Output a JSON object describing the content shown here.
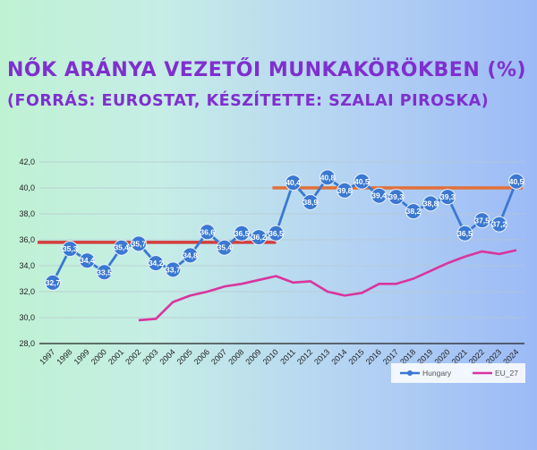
{
  "title": "Nők aránya vezetői munkakörökben (%)",
  "subtitle": "(forrás: Eurostat, készítette: Szalai Piroska)",
  "colors": {
    "hungary": "#3a78d2",
    "eu": "#d9359d",
    "ref_line_before": "#d43c3c",
    "ref_line_after": "#e2703a"
  },
  "chart_data": {
    "type": "line",
    "title": "Nők aránya vezetői munkakörökben (%)",
    "xlabel": "",
    "ylabel": "",
    "ylim": [
      28,
      42
    ],
    "yticks": [
      "28,0",
      "30,0",
      "32,0",
      "34,0",
      "36,0",
      "38,0",
      "40,0",
      "42,0"
    ],
    "categories": [
      "1997",
      "1998",
      "1999",
      "2000",
      "2001",
      "2002",
      "2003",
      "2004",
      "2005",
      "2006",
      "2007",
      "2008",
      "2009",
      "2010",
      "2011",
      "2012",
      "2013",
      "2014",
      "2015",
      "2016",
      "2017",
      "2018",
      "2019",
      "2020",
      "2021",
      "2022",
      "2023",
      "2024"
    ],
    "series": [
      {
        "name": "Hungary",
        "values": [
          32.7,
          35.3,
          34.4,
          33.5,
          35.4,
          35.7,
          34.2,
          33.7,
          34.8,
          36.6,
          35.4,
          36.5,
          36.2,
          36.5,
          40.4,
          38.9,
          40.8,
          39.8,
          40.5,
          39.4,
          39.3,
          38.2,
          38.8,
          39.3,
          36.5,
          37.5,
          37.2,
          40.5
        ],
        "labels": [
          "32,7",
          "35,3",
          "34,4",
          "33,5",
          "35,4",
          "35,7",
          "34,2",
          "33,7",
          "34,8",
          "36,6",
          "35,4",
          "36,5",
          "36,2",
          "36,5",
          "40,4",
          "38,9",
          "40,8",
          "39,8",
          "40,5",
          "39,4",
          "39,3",
          "38,2",
          "38,8",
          "39,3",
          "36,5",
          "37,5",
          "37,2",
          "40,5"
        ]
      },
      {
        "name": "EU_27",
        "values": [
          null,
          null,
          null,
          null,
          null,
          29.8,
          29.9,
          31.2,
          31.7,
          32.0,
          32.4,
          32.6,
          32.9,
          33.2,
          32.7,
          32.8,
          32.0,
          31.7,
          31.9,
          32.6,
          32.6,
          33.0,
          33.6,
          34.2,
          34.7,
          35.1,
          34.9,
          35.2
        ]
      }
    ],
    "reference_lines": [
      {
        "from": "1997",
        "to": "2010",
        "value": 35.8
      },
      {
        "from": "2010",
        "to": "2024",
        "value": 40.0
      }
    ],
    "grid": "horizontal",
    "legend": "bottom-right"
  }
}
